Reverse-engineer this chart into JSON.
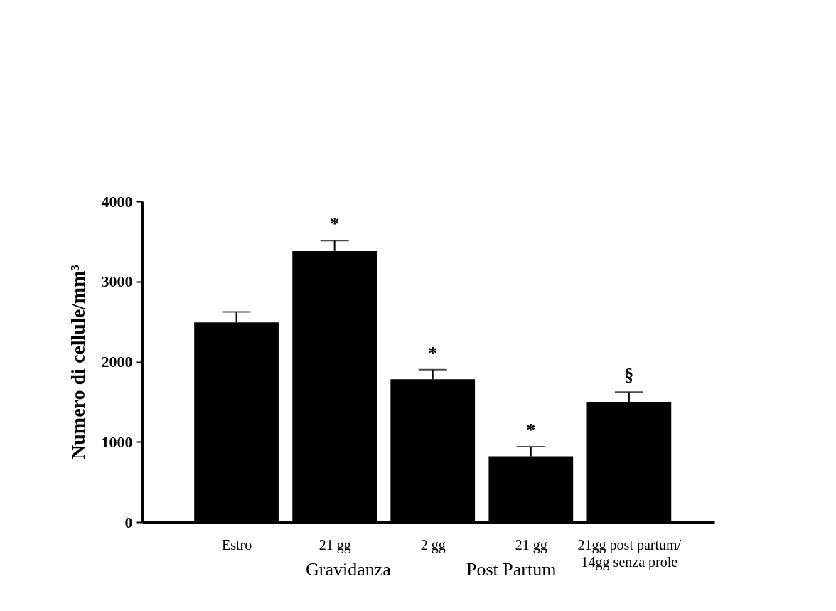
{
  "chart_data": {
    "type": "bar",
    "ylabel": "Numero di cellule/mm³",
    "categories": [
      "Estro",
      "21 gg",
      "2 gg",
      "21 gg",
      "21gg post partum/ 14gg senza prole"
    ],
    "values": [
      2490,
      3380,
      1780,
      820,
      1500
    ],
    "errors": [
      [
        2490,
        2620
      ],
      [
        3380,
        3510
      ],
      [
        1780,
        1900
      ],
      [
        820,
        940
      ],
      [
        1500,
        1620
      ]
    ],
    "value_labels": [
      null,
      "*",
      "*",
      "*",
      "§"
    ],
    "color": "#000000",
    "ylim": [
      0,
      4000
    ],
    "yticks": [
      0,
      1000,
      2000,
      3000,
      4000
    ],
    "grid": false,
    "annotations": [
      "Gravidanza",
      "Post Partum"
    ]
  }
}
